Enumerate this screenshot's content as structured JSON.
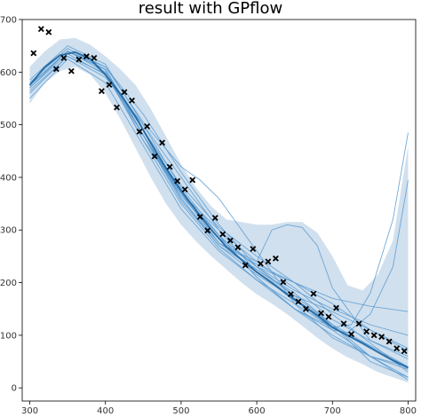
{
  "chart_data": {
    "type": "line",
    "title": "result with GPflow",
    "xlabel": "",
    "ylabel": "",
    "xlim": [
      290,
      810
    ],
    "ylim": [
      -25,
      700
    ],
    "x_ticks": [
      300,
      400,
      500,
      600,
      700,
      800
    ],
    "y_ticks": [
      0,
      100,
      200,
      300,
      400,
      500,
      600,
      700
    ],
    "grid": false,
    "legend": "none",
    "colors": {
      "mean": "#2a6fa8",
      "samples": "#5b9bd1",
      "band": "#c9dbeb",
      "points": "#000000"
    },
    "observations": {
      "x": [
        305,
        315,
        325,
        335,
        345,
        355,
        365,
        375,
        385,
        395,
        405,
        415,
        425,
        435,
        445,
        455,
        465,
        475,
        485,
        495,
        505,
        515,
        525,
        535,
        545,
        555,
        565,
        575,
        585,
        595,
        605,
        615,
        625,
        635,
        645,
        655,
        665,
        675,
        685,
        695,
        705,
        715,
        725,
        735,
        745,
        755,
        765,
        775,
        785,
        795
      ],
      "y": [
        636,
        682,
        676,
        606,
        627,
        602,
        624,
        630,
        627,
        564,
        576,
        533,
        562,
        546,
        487,
        497,
        440,
        466,
        420,
        393,
        377,
        395,
        325,
        299,
        323,
        292,
        280,
        267,
        233,
        264,
        236,
        240,
        246,
        201,
        178,
        164,
        150,
        179,
        142,
        135,
        152,
        122,
        102,
        122,
        107,
        100,
        97,
        88,
        75,
        70
      ]
    },
    "mean": {
      "x": [
        300,
        320,
        340,
        360,
        380,
        400,
        420,
        440,
        460,
        480,
        500,
        520,
        540,
        560,
        580,
        600,
        620,
        640,
        660,
        680,
        700,
        720,
        740,
        760,
        780,
        800
      ],
      "y": [
        575,
        610,
        632,
        638,
        625,
        595,
        558,
        515,
        465,
        418,
        375,
        337,
        300,
        268,
        243,
        220,
        200,
        178,
        158,
        138,
        115,
        100,
        85,
        68,
        52,
        38
      ]
    },
    "confidence_band": {
      "x": [
        300,
        320,
        340,
        360,
        380,
        400,
        420,
        440,
        460,
        480,
        500,
        520,
        540,
        560,
        580,
        600,
        620,
        640,
        660,
        680,
        700,
        720,
        740,
        760,
        780,
        800
      ],
      "upper": [
        610,
        640,
        662,
        665,
        652,
        630,
        605,
        575,
        530,
        478,
        425,
        380,
        345,
        320,
        315,
        310,
        310,
        315,
        315,
        295,
        250,
        195,
        185,
        215,
        280,
        460
      ],
      "lower": [
        540,
        580,
        602,
        610,
        595,
        560,
        510,
        455,
        400,
        350,
        310,
        278,
        250,
        225,
        200,
        178,
        160,
        140,
        118,
        95,
        75,
        58,
        45,
        30,
        20,
        10
      ]
    },
    "samples": [
      {
        "x": [
          300,
          350,
          400,
          450,
          500,
          550,
          600,
          650,
          700,
          750,
          800
        ],
        "y": [
          575,
          640,
          605,
          480,
          355,
          270,
          215,
          170,
          110,
          60,
          35
        ]
      },
      {
        "x": [
          300,
          350,
          400,
          450,
          500,
          550,
          600,
          650,
          700,
          750,
          800
        ],
        "y": [
          560,
          630,
          590,
          500,
          400,
          300,
          220,
          165,
          120,
          80,
          40
        ]
      },
      {
        "x": [
          300,
          350,
          400,
          450,
          500,
          550,
          600,
          650,
          700,
          750,
          800
        ],
        "y": [
          570,
          640,
          600,
          470,
          370,
          300,
          240,
          190,
          130,
          90,
          55
        ]
      },
      {
        "x": [
          300,
          350,
          400,
          450,
          500,
          550,
          600,
          650,
          700,
          750,
          800
        ],
        "y": [
          580,
          645,
          610,
          520,
          410,
          310,
          230,
          175,
          145,
          110,
          70
        ]
      },
      {
        "x": [
          300,
          350,
          400,
          450,
          500,
          550,
          600,
          650,
          700,
          750,
          800
        ],
        "y": [
          550,
          625,
          580,
          460,
          340,
          260,
          205,
          160,
          115,
          75,
          40
        ]
      },
      {
        "x": [
          300,
          350,
          400,
          450,
          500,
          550,
          600,
          650,
          700,
          750,
          800
        ],
        "y": [
          585,
          650,
          615,
          500,
          380,
          290,
          230,
          200,
          160,
          110,
          75
        ]
      },
      {
        "x": [
          300,
          350,
          400,
          450,
          500,
          550,
          600,
          650,
          700,
          750,
          800
        ],
        "y": [
          570,
          635,
          595,
          480,
          360,
          275,
          225,
          180,
          120,
          50,
          20
        ]
      },
      {
        "x": [
          300,
          350,
          400,
          450,
          500,
          550,
          600,
          650,
          700,
          750,
          800
        ],
        "y": [
          565,
          630,
          598,
          490,
          385,
          305,
          250,
          200,
          140,
          85,
          30
        ]
      },
      {
        "x": [
          300,
          350,
          400,
          450,
          500,
          550,
          600,
          650,
          700,
          750,
          800
        ],
        "y": [
          575,
          640,
          605,
          470,
          350,
          265,
          205,
          150,
          100,
          60,
          20
        ]
      },
      {
        "x": [
          300,
          350,
          400,
          450,
          500,
          525,
          550,
          600,
          650,
          700,
          750,
          800
        ],
        "y": [
          575,
          640,
          610,
          505,
          420,
          395,
          360,
          260,
          160,
          95,
          60,
          40
        ]
      },
      {
        "x": [
          300,
          350,
          400,
          450,
          500,
          550,
          600,
          650,
          700,
          750,
          800
        ],
        "y": [
          575,
          640,
          605,
          480,
          370,
          275,
          235,
          200,
          170,
          155,
          145
        ]
      },
      {
        "x": [
          300,
          350,
          400,
          450,
          500,
          550,
          600,
          650,
          700,
          720,
          750,
          780,
          800
        ],
        "y": [
          575,
          640,
          605,
          480,
          370,
          290,
          210,
          150,
          110,
          105,
          140,
          230,
          395
        ]
      },
      {
        "x": [
          300,
          350,
          400,
          450,
          500,
          550,
          600,
          650,
          700,
          725,
          750,
          780,
          800
        ],
        "y": [
          575,
          640,
          605,
          480,
          370,
          290,
          210,
          150,
          115,
          120,
          180,
          320,
          485
        ]
      },
      {
        "x": [
          300,
          350,
          400,
          450,
          500,
          550,
          600,
          620,
          640,
          660,
          680,
          700,
          750,
          800
        ],
        "y": [
          575,
          640,
          605,
          480,
          370,
          275,
          240,
          300,
          310,
          305,
          270,
          190,
          90,
          60
        ]
      },
      {
        "x": [
          300,
          350,
          400,
          450,
          500,
          550,
          600,
          650,
          700,
          750,
          800
        ],
        "y": [
          575,
          640,
          605,
          490,
          360,
          270,
          225,
          175,
          120,
          60,
          15
        ]
      },
      {
        "x": [
          300,
          350,
          400,
          450,
          500,
          550,
          600,
          650,
          700,
          750,
          800
        ],
        "y": [
          575,
          640,
          605,
          480,
          365,
          285,
          230,
          185,
          150,
          120,
          100
        ]
      }
    ]
  }
}
